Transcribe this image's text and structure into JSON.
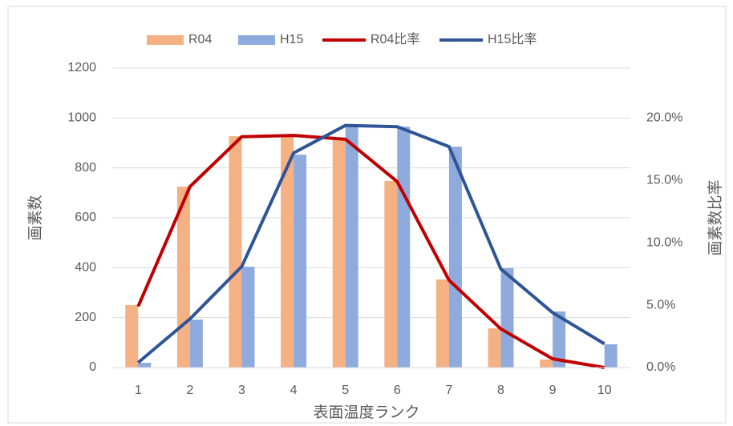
{
  "chart_data": {
    "type": "bar",
    "x_label": "表面温度ランク",
    "y_label": "画素数",
    "y2_label": "画素数比率",
    "categories": [
      "1",
      "2",
      "3",
      "4",
      "5",
      "6",
      "7",
      "8",
      "9",
      "10"
    ],
    "series": [
      {
        "name": "R04",
        "type": "bar",
        "color": "#f4b183",
        "values": [
          250,
          725,
          927,
          930,
          920,
          748,
          353,
          157,
          32,
          2
        ]
      },
      {
        "name": "H15",
        "type": "bar",
        "color": "#8faadc",
        "values": [
          19,
          192,
          404,
          853,
          975,
          965,
          885,
          398,
          225,
          93
        ]
      },
      {
        "name": "R04比率",
        "type": "line",
        "axis": "y2",
        "color": "#c00000",
        "values": [
          4.9,
          14.5,
          18.5,
          18.6,
          18.3,
          14.9,
          7.0,
          3.1,
          0.7,
          0.0
        ]
      },
      {
        "name": "H15比率",
        "type": "line",
        "axis": "y2",
        "color": "#2f5597",
        "values": [
          0.4,
          3.9,
          8.1,
          17.2,
          19.4,
          19.3,
          17.7,
          7.9,
          4.4,
          1.9
        ]
      }
    ],
    "ylim": [
      0,
      1200
    ],
    "yticks": [
      0,
      200,
      400,
      600,
      800,
      1000,
      1200
    ],
    "y2lim": [
      0,
      24
    ],
    "y2ticks": [
      {
        "value": 0,
        "label": "0.0%"
      },
      {
        "value": 5,
        "label": "5.0%"
      },
      {
        "value": 10,
        "label": "10.0%"
      },
      {
        "value": 15,
        "label": "15.0%"
      },
      {
        "value": 20,
        "label": "20.0%"
      }
    ],
    "legend": "top"
  }
}
